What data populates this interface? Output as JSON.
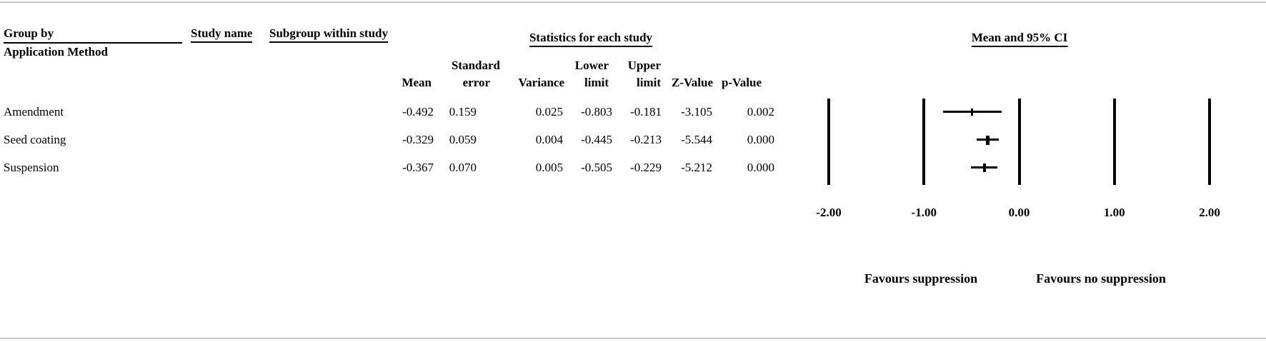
{
  "table": {
    "header": {
      "group_by_line1": "Group by",
      "group_by_line2": "Application Method",
      "study_name": "Study name",
      "subgroup": "Subgroup within study",
      "statistics": "Statistics for each study",
      "ci_title": "Mean and 95% CI"
    },
    "columns": {
      "mean": "Mean",
      "standard_error_line1": "Standard",
      "standard_error_line2": "error",
      "variance": "Variance",
      "lower_limit_line1": "Lower",
      "lower_limit_line2": "limit",
      "upper_limit_line1": "Upper",
      "upper_limit_line2": "limit",
      "z_value": "Z-Value",
      "p_value": "p-Value"
    },
    "rows": [
      {
        "group": "Amendment",
        "mean": "-0.492",
        "standard_error": "0.159",
        "variance": "0.025",
        "lower_limit": "-0.803",
        "upper_limit": "-0.181",
        "z_value": "-3.105",
        "p_value": "0.002"
      },
      {
        "group": "Seed coating",
        "mean": "-0.329",
        "standard_error": "0.059",
        "variance": "0.004",
        "lower_limit": "-0.445",
        "upper_limit": "-0.213",
        "z_value": "-5.544",
        "p_value": "0.000"
      },
      {
        "group": "Suspension",
        "mean": "-0.367",
        "standard_error": "0.070",
        "variance": "0.005",
        "lower_limit": "-0.505",
        "upper_limit": "-0.229",
        "z_value": "-5.212",
        "p_value": "0.000"
      }
    ]
  },
  "chart_data": {
    "type": "forest",
    "title": "Mean and 95% CI",
    "xlim": [
      -2.0,
      2.0
    ],
    "x_ticks": [
      -2.0,
      -1.0,
      0.0,
      1.0,
      2.0
    ],
    "x_tick_labels": [
      "-2.00",
      "-1.00",
      "0.00",
      "1.00",
      "2.00"
    ],
    "grid": false,
    "series": [
      {
        "name": "Amendment",
        "mean": -0.492,
        "lower": -0.803,
        "upper": -0.181
      },
      {
        "name": "Seed coating",
        "mean": -0.329,
        "lower": -0.445,
        "upper": -0.213
      },
      {
        "name": "Suspension",
        "mean": -0.367,
        "lower": -0.505,
        "upper": -0.229
      }
    ],
    "footer_left": "Favours suppression",
    "footer_right": "Favours no suppression"
  },
  "colors": {
    "text": "#000000",
    "marker": "#000000",
    "axis_line": "#000000",
    "frame_rule": "#c8c8c8",
    "background": "#ffffff"
  }
}
